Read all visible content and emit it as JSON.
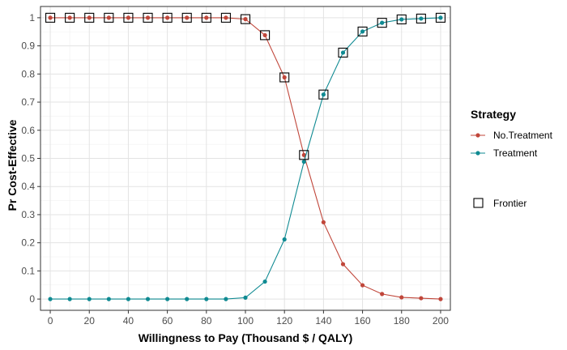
{
  "chart_data": {
    "type": "line",
    "xlabel": "Willingness to Pay (Thousand $ / QALY)",
    "ylabel": "Pr Cost-Effective",
    "xlim": [
      -5,
      205
    ],
    "ylim": [
      -0.04,
      1.04
    ],
    "x_ticks": [
      0,
      20,
      40,
      60,
      80,
      100,
      120,
      140,
      160,
      180,
      200
    ],
    "y_ticks": [
      0,
      0.1,
      0.2,
      0.3,
      0.4,
      0.5,
      0.6,
      0.7,
      0.8,
      0.9,
      1
    ],
    "x_tick_labels": [
      "0",
      "20",
      "40",
      "60",
      "80",
      "100",
      "120",
      "140",
      "160",
      "180",
      "200"
    ],
    "y_tick_labels": [
      "0",
      "0.1",
      "0.2",
      "0.3",
      "0.4",
      "0.5",
      "0.6",
      "0.7",
      "0.8",
      "0.9",
      "1"
    ],
    "grid": true,
    "x": [
      0,
      10,
      20,
      30,
      40,
      50,
      60,
      70,
      80,
      90,
      100,
      110,
      120,
      130,
      140,
      150,
      160,
      170,
      180,
      190,
      200
    ],
    "series": [
      {
        "name": "No.Treatment",
        "color": "#C0463A",
        "values": [
          1,
          1,
          1,
          1,
          1,
          1,
          1,
          1,
          1,
          1,
          0.995,
          0.938,
          0.788,
          0.512,
          0.273,
          0.124,
          0.049,
          0.018,
          0.006,
          0.003,
          0
        ]
      },
      {
        "name": "Treatment",
        "color": "#0F8A92",
        "values": [
          0,
          0,
          0,
          0,
          0,
          0,
          0,
          0,
          0,
          0,
          0.005,
          0.062,
          0.212,
          0.488,
          0.727,
          0.876,
          0.951,
          0.982,
          0.994,
          0.997,
          1
        ]
      }
    ],
    "frontier": {
      "label": "Frontier",
      "x": [
        0,
        10,
        20,
        30,
        40,
        50,
        60,
        70,
        80,
        90,
        100,
        110,
        120,
        130,
        140,
        150,
        160,
        170,
        180,
        190,
        200
      ],
      "y": [
        1,
        1,
        1,
        1,
        1,
        1,
        1,
        1,
        1,
        1,
        0.995,
        0.938,
        0.788,
        0.512,
        0.727,
        0.876,
        0.951,
        0.982,
        0.994,
        0.997,
        1
      ]
    },
    "legend": {
      "title": "Strategy",
      "position": "right"
    }
  }
}
